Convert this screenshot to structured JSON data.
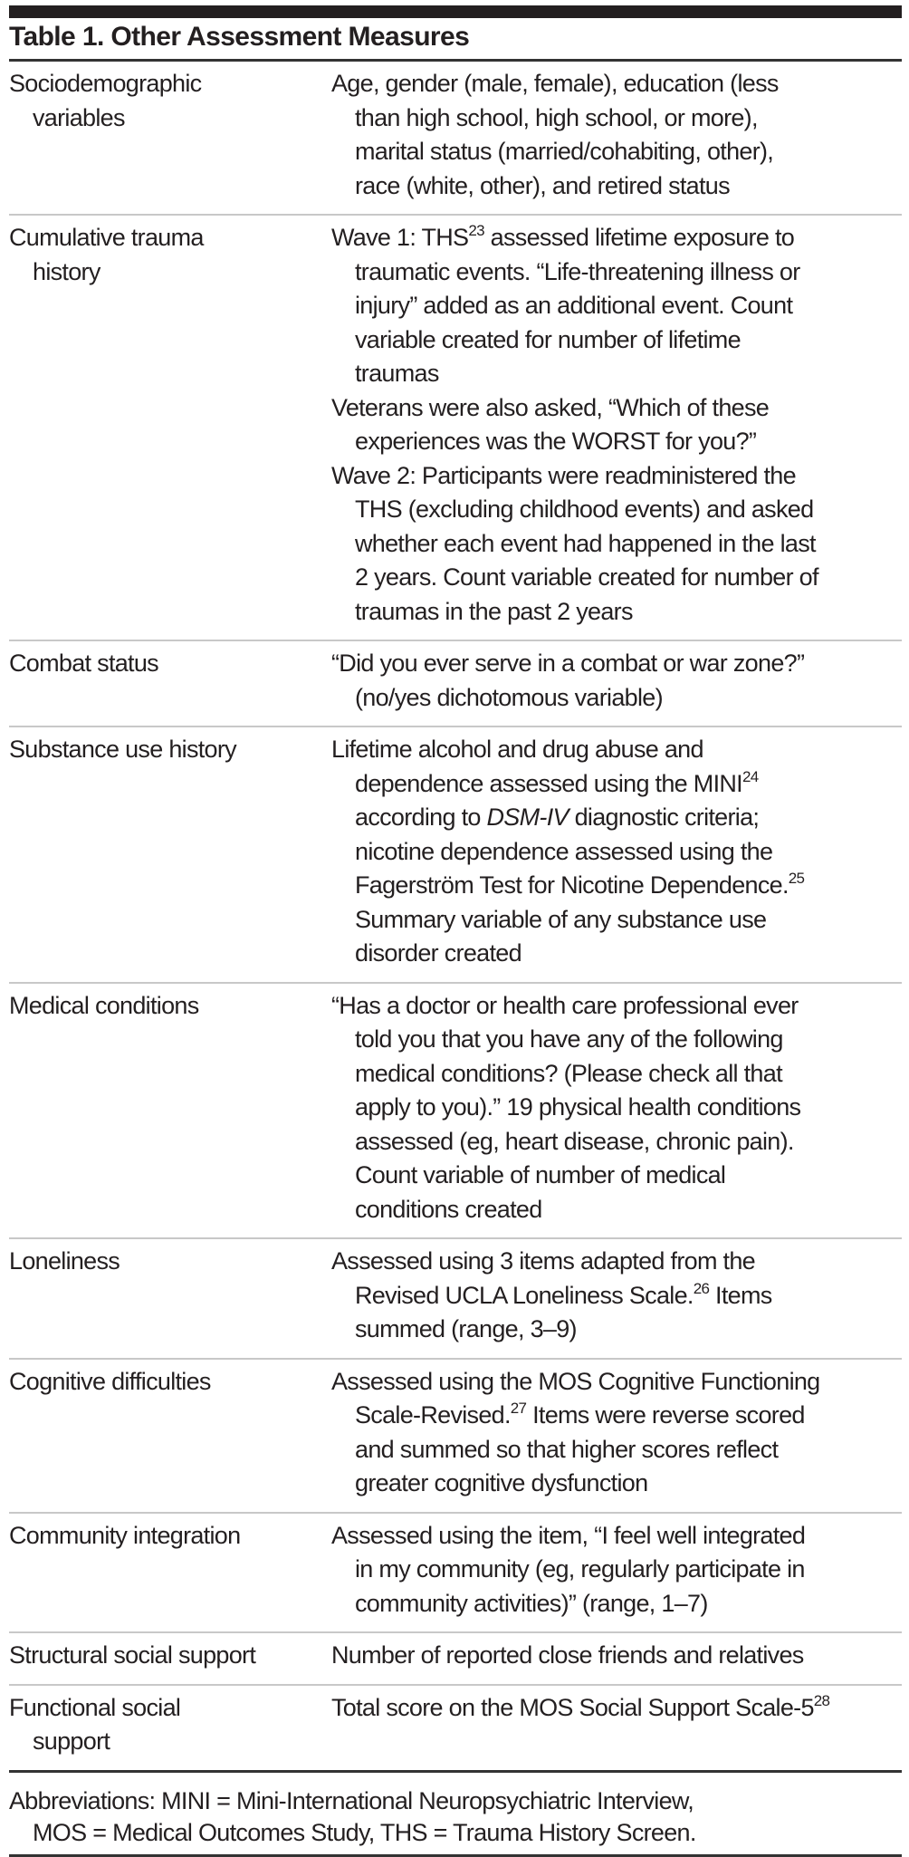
{
  "title": "Table 1. Other Assessment Measures",
  "rows": [
    {
      "label": [
        "Sociodemographic",
        "variables"
      ],
      "desc": [
        [
          "Age, gender (male, female), education (less",
          "than high school, high school, or more),",
          "marital status (married/cohabiting, other),",
          "race (white, other), and retired status"
        ]
      ]
    },
    {
      "label": [
        "Cumulative trauma",
        "history"
      ],
      "desc": [
        [
          [
            {
              "t": "Wave 1: THS"
            },
            {
              "t": "23",
              "sup": true
            },
            {
              "t": " assessed lifetime exposure to"
            }
          ],
          "traumatic events. “Life-threatening illness or",
          "injury” added as an additional event. Count",
          "variable created for number of lifetime",
          "traumas"
        ],
        [
          "Veterans were also asked, “Which of these",
          "experiences was the WORST for you?”"
        ],
        [
          "Wave 2: Participants were readministered the",
          "THS (excluding childhood events) and asked",
          "whether each event had happened in the last",
          "2 years. Count variable created for number of",
          "traumas in the past 2 years"
        ]
      ]
    },
    {
      "label": [
        "Combat status"
      ],
      "desc": [
        [
          "“Did you ever serve in a combat or war zone?”",
          "(no/yes dichotomous variable)"
        ]
      ]
    },
    {
      "label": [
        "Substance use history"
      ],
      "desc": [
        [
          "Lifetime alcohol and drug abuse and",
          [
            {
              "t": "dependence assessed using the MINI"
            },
            {
              "t": "24",
              "sup": true
            }
          ],
          [
            {
              "t": "according to "
            },
            {
              "t": "DSM-IV",
              "i": true
            },
            {
              "t": " diagnostic criteria;"
            }
          ],
          "nicotine dependence assessed using the",
          [
            {
              "t": "Fagerström Test for Nicotine Dependence."
            },
            {
              "t": "25",
              "sup": true
            }
          ],
          "Summary variable of any substance use",
          "disorder created"
        ]
      ]
    },
    {
      "label": [
        "Medical conditions"
      ],
      "desc": [
        [
          "“Has a doctor or health care professional ever",
          "told you that you have any of the following",
          "medical conditions? (Please check all that",
          "apply to you).” 19 physical health conditions",
          "assessed (eg, heart disease, chronic pain).",
          "Count variable of number of medical",
          "conditions created"
        ]
      ]
    },
    {
      "label": [
        "Loneliness"
      ],
      "desc": [
        [
          "Assessed using 3 items adapted from the",
          [
            {
              "t": "Revised UCLA Loneliness Scale."
            },
            {
              "t": "26",
              "sup": true
            },
            {
              "t": " Items"
            }
          ],
          "summed (range, 3–9)"
        ]
      ]
    },
    {
      "label": [
        "Cognitive difficulties"
      ],
      "desc": [
        [
          "Assessed using the MOS Cognitive Functioning",
          [
            {
              "t": "Scale-Revised."
            },
            {
              "t": "27",
              "sup": true
            },
            {
              "t": " Items were reverse scored"
            }
          ],
          "and summed so that higher scores reflect",
          "greater cognitive dysfunction"
        ]
      ]
    },
    {
      "label": [
        "Community integration"
      ],
      "desc": [
        [
          "Assessed using the item, “I feel well integrated",
          "in my community (eg, regularly participate in",
          "community activities)” (range, 1–7)"
        ]
      ]
    },
    {
      "label": [
        "Structural social support"
      ],
      "desc": [
        [
          "Number of reported close friends and relatives"
        ]
      ]
    },
    {
      "label": [
        "Functional social",
        "support"
      ],
      "desc": [
        [
          [
            {
              "t": "Total score on the MOS Social Support Scale-5"
            },
            {
              "t": "28",
              "sup": true
            }
          ]
        ]
      ]
    }
  ],
  "footnote": [
    "Abbreviations: MINI = Mini-International Neuropsychiatric Interview,",
    "MOS = Medical Outcomes Study, THS = Trauma History Screen."
  ]
}
